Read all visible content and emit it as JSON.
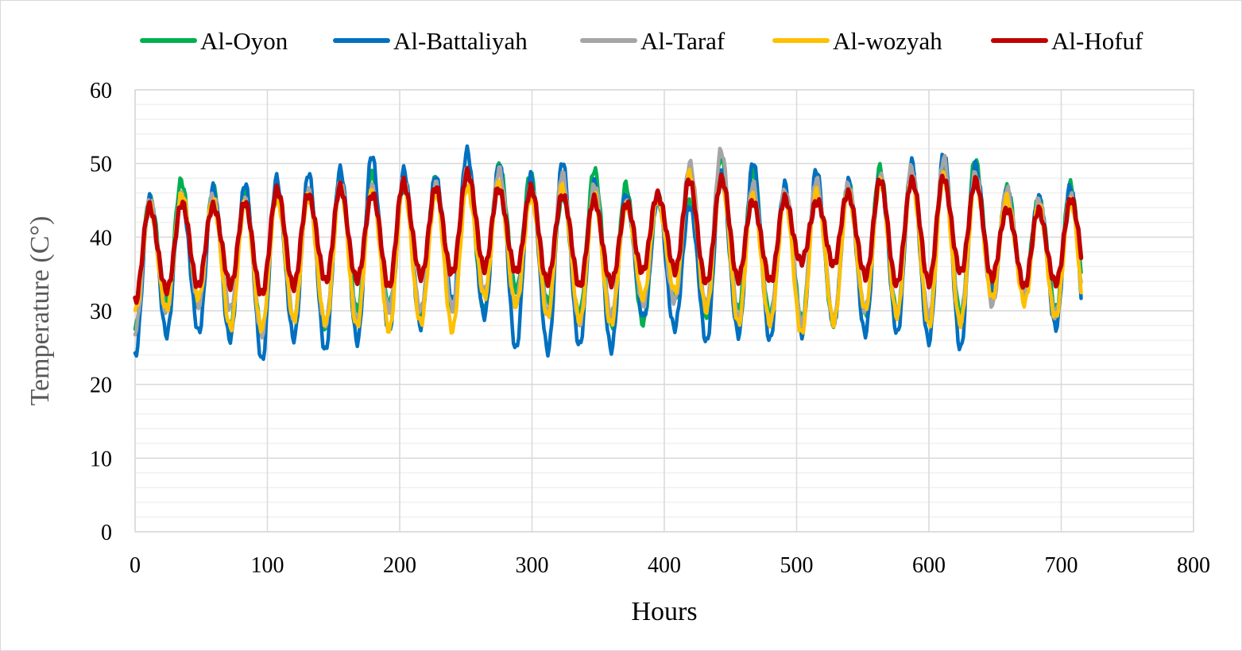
{
  "chart_data": {
    "type": "line",
    "xlabel": "Hours",
    "ylabel": "Temperature (C°)",
    "xlim": [
      0,
      800
    ],
    "ylim": [
      0,
      60
    ],
    "x_ticks": [
      "0",
      "100",
      "200",
      "300",
      "400",
      "500",
      "600",
      "700",
      "800"
    ],
    "y_ticks": [
      "0",
      "10",
      "20",
      "30",
      "40",
      "50",
      "60"
    ],
    "grid": true,
    "legend_position": "top",
    "x_range_of_data": [
      0,
      715
    ],
    "sample_step_hours": 1,
    "series": [
      {
        "name": "Al-Oyon",
        "color": "#00b050",
        "daily_max": [
          45.5,
          47.5,
          46.5,
          46.5,
          46.0,
          46.5,
          48.0,
          48.5,
          47.0,
          48.0,
          49.0,
          50.0,
          48.5,
          45.5,
          49.5,
          47.0,
          45.5,
          45.0,
          50.5,
          49.0,
          45.5,
          47.5,
          47.5,
          49.5,
          49.0,
          50.5,
          50.5,
          46.5,
          45.5,
          47.0,
          45.5
        ],
        "daily_min": [
          27.5,
          31.5,
          30.5,
          28.0,
          27.0,
          28.5,
          28.0,
          30.0,
          30.5,
          29.5,
          30.0,
          30.0,
          33.0,
          31.0,
          29.5,
          28.0,
          28.0,
          32.0,
          29.5,
          30.0,
          29.5,
          29.0,
          28.0,
          29.5,
          29.5,
          28.0,
          29.5,
          33.0,
          32.5,
          30.5,
          29.5
        ]
      },
      {
        "name": "Al-Battaliyah",
        "color": "#0070c0",
        "daily_max": [
          45.5,
          46.0,
          46.5,
          47.5,
          48.0,
          48.5,
          49.5,
          51.0,
          49.0,
          48.5,
          51.5,
          50.0,
          48.5,
          50.0,
          47.5,
          46.0,
          45.0,
          44.5,
          48.5,
          50.0,
          47.5,
          49.0,
          47.5,
          48.5,
          50.0,
          51.5,
          50.0,
          46.0,
          45.5,
          47.0,
          45.5
        ],
        "daily_min": [
          23.5,
          27.0,
          27.0,
          26.0,
          23.5,
          26.0,
          24.5,
          26.0,
          27.0,
          28.0,
          31.5,
          29.0,
          25.0,
          24.5,
          25.0,
          25.0,
          29.0,
          27.5,
          26.0,
          26.5,
          26.0,
          27.0,
          28.0,
          27.0,
          27.0,
          25.5,
          25.0,
          33.0,
          32.5,
          28.0,
          25.0
        ]
      },
      {
        "name": "Al-Taraf",
        "color": "#a5a5a5",
        "daily_max": [
          45.0,
          46.0,
          45.5,
          45.0,
          46.5,
          46.0,
          47.5,
          47.0,
          47.5,
          47.5,
          49.0,
          49.0,
          47.0,
          48.5,
          47.0,
          45.0,
          45.5,
          50.0,
          52.0,
          47.0,
          46.5,
          48.0,
          47.0,
          48.5,
          49.5,
          50.5,
          49.0,
          46.5,
          45.0,
          46.0,
          45.0
        ],
        "daily_min": [
          27.0,
          30.0,
          31.0,
          30.0,
          27.0,
          29.0,
          28.0,
          29.0,
          30.0,
          30.0,
          30.5,
          32.5,
          31.0,
          30.0,
          28.0,
          29.5,
          31.0,
          31.0,
          31.0,
          29.0,
          28.5,
          28.5,
          28.5,
          30.0,
          30.0,
          29.0,
          28.5,
          31.0,
          32.0,
          29.5,
          27.0
        ]
      },
      {
        "name": "Al-wozyah",
        "color": "#ffc000",
        "daily_max": [
          44.0,
          46.0,
          45.0,
          44.5,
          45.5,
          45.5,
          46.5,
          46.5,
          47.0,
          46.0,
          47.0,
          47.0,
          45.5,
          47.0,
          45.5,
          44.5,
          45.0,
          48.5,
          48.0,
          45.5,
          45.0,
          46.5,
          46.0,
          47.5,
          48.0,
          48.0,
          47.5,
          45.5,
          44.0,
          45.0,
          44.0
        ],
        "daily_min": [
          30.0,
          30.0,
          32.0,
          27.5,
          27.5,
          29.0,
          28.0,
          28.0,
          27.5,
          28.0,
          27.5,
          32.0,
          30.5,
          29.5,
          28.5,
          28.0,
          32.0,
          32.5,
          30.0,
          28.5,
          28.0,
          27.0,
          28.5,
          30.0,
          29.5,
          28.0,
          28.0,
          32.0,
          31.0,
          29.0,
          26.0
        ]
      },
      {
        "name": "Al-Hofuf",
        "color": "#c00000",
        "daily_max": [
          44.0,
          44.5,
          44.5,
          44.5,
          46.5,
          46.0,
          46.5,
          46.0,
          47.5,
          46.5,
          49.0,
          46.5,
          46.5,
          46.0,
          45.0,
          44.5,
          46.0,
          47.5,
          48.0,
          45.0,
          45.0,
          45.0,
          46.0,
          47.5,
          48.0,
          48.0,
          47.5,
          44.0,
          43.5,
          45.0,
          45.0
        ],
        "daily_min": [
          31.5,
          32.5,
          33.5,
          33.5,
          32.0,
          33.5,
          34.0,
          34.0,
          33.5,
          34.5,
          35.0,
          36.0,
          35.0,
          34.0,
          33.5,
          33.5,
          35.5,
          35.5,
          33.5,
          34.5,
          34.0,
          36.5,
          36.5,
          34.5,
          33.5,
          34.0,
          35.0,
          34.5,
          33.5,
          33.5,
          34.5
        ]
      }
    ]
  }
}
